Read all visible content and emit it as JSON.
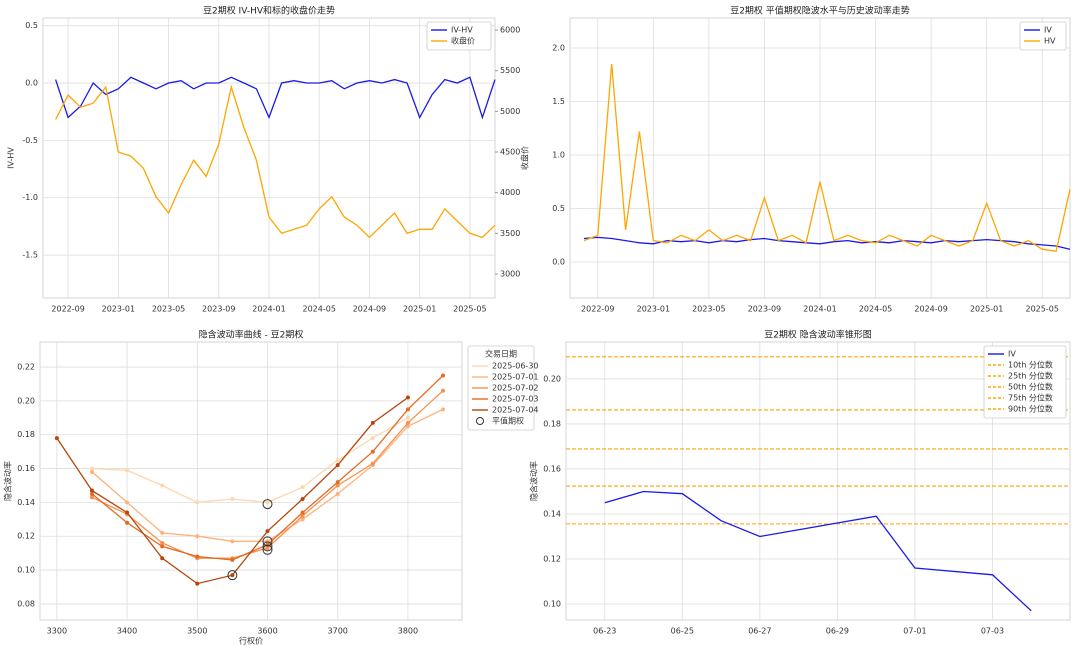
{
  "chart_data": [
    {
      "type": "line",
      "title": "豆2期权 IV-HV和标的收盘价走势",
      "ylabel": "IV-HV",
      "y2label": "收盘价",
      "ycolor": "#1f77b4",
      "y2color": "#e00000",
      "grid": true,
      "legend": "upper right",
      "x": [
        "2022-08",
        "2022-09",
        "2022-10",
        "2022-11",
        "2022-12",
        "2023-01",
        "2023-02",
        "2023-03",
        "2023-04",
        "2023-05",
        "2023-06",
        "2023-07",
        "2023-08",
        "2023-09",
        "2023-10",
        "2023-11",
        "2023-12",
        "2024-01",
        "2024-02",
        "2024-03",
        "2024-04",
        "2024-05",
        "2024-06",
        "2024-07",
        "2024-08",
        "2024-09",
        "2024-10",
        "2024-11",
        "2024-12",
        "2025-01",
        "2025-02",
        "2025-03",
        "2025-04",
        "2025-05",
        "2025-06",
        "2025-07"
      ],
      "xlim": [
        "2022-07",
        "2025-07"
      ],
      "xticks": [
        "2022-09",
        "2023-01",
        "2023-05",
        "2023-09",
        "2024-01",
        "2024-05",
        "2024-09",
        "2025-01",
        "2025-05"
      ],
      "ylim": [
        -1.874,
        0.567
      ],
      "yticks": [
        {
          "value": -1.5,
          "label": "-1.5"
        },
        {
          "value": -1,
          "label": "-1.0"
        },
        {
          "value": -0.5,
          "label": "-0.5"
        },
        {
          "value": 0,
          "label": "0.0"
        },
        0.5
      ],
      "y2lim": [
        2705,
        6148
      ],
      "y2ticks": [
        3000,
        3500,
        4000,
        4500,
        5000,
        5500,
        6000
      ],
      "series": [
        {
          "name": "IV-HV",
          "color": "#1a1ae6",
          "values": [
            0.03,
            -0.3,
            -0.2,
            0,
            -0.1,
            -0.05,
            0.05,
            0,
            -0.05,
            0,
            0.02,
            -0.05,
            0,
            0,
            0.05,
            0,
            -0.05,
            -0.3,
            0,
            0.02,
            0,
            0,
            0.02,
            -0.05,
            0,
            0.02,
            0,
            0.03,
            0,
            -0.3,
            -0.1,
            0.03,
            0,
            0.05,
            -0.3,
            0.03
          ]
        },
        {
          "name": "收盘价",
          "color": "#ffa500",
          "axis": "y2",
          "values": [
            4900,
            5200,
            5050,
            5100,
            5300,
            4500,
            4450,
            4300,
            3950,
            3750,
            4100,
            4400,
            4200,
            4600,
            5300,
            4800,
            4400,
            3700,
            3500,
            3550,
            3600,
            3800,
            3950,
            3700,
            3600,
            3450,
            3600,
            3750,
            3500,
            3550,
            3550,
            3800,
            3650,
            3500,
            3450,
            3600
          ]
        }
      ]
    },
    {
      "type": "line",
      "title": "豆2期权 平值期权隐波水平与历史波动率走势",
      "grid": true,
      "legend": "upper right",
      "x": [
        "2022-08",
        "2022-09",
        "2022-10",
        "2022-11",
        "2022-12",
        "2023-01",
        "2023-02",
        "2023-03",
        "2023-04",
        "2023-05",
        "2023-06",
        "2023-07",
        "2023-08",
        "2023-09",
        "2023-10",
        "2023-11",
        "2023-12",
        "2024-01",
        "2024-02",
        "2024-03",
        "2024-04",
        "2024-05",
        "2024-06",
        "2024-07",
        "2024-08",
        "2024-09",
        "2024-10",
        "2024-11",
        "2024-12",
        "2025-01",
        "2025-02",
        "2025-03",
        "2025-04",
        "2025-05",
        "2025-06",
        "2025-07"
      ],
      "xlim": [
        "2022-07",
        "2025-07"
      ],
      "xticks": [
        "2022-09",
        "2023-01",
        "2023-05",
        "2023-09",
        "2024-01",
        "2024-05",
        "2024-09",
        "2025-01",
        "2025-05"
      ],
      "ylim": [
        -0.336,
        2.28
      ],
      "yticks": [
        {
          "value": 0,
          "label": "0.0"
        },
        0.5,
        {
          "value": 1,
          "label": "1.0"
        },
        1.5,
        {
          "value": 2,
          "label": "2.0"
        }
      ],
      "series": [
        {
          "name": "IV",
          "color": "#1a1ae6",
          "values": [
            0.22,
            0.23,
            0.22,
            0.2,
            0.18,
            0.17,
            0.2,
            0.19,
            0.2,
            0.18,
            0.2,
            0.19,
            0.21,
            0.22,
            0.2,
            0.19,
            0.18,
            0.17,
            0.19,
            0.2,
            0.18,
            0.19,
            0.18,
            0.2,
            0.19,
            0.18,
            0.2,
            0.19,
            0.2,
            0.21,
            0.2,
            0.19,
            0.17,
            0.16,
            0.15,
            0.12
          ]
        },
        {
          "name": "HV",
          "color": "#ffa500",
          "values": [
            0.2,
            0.25,
            1.85,
            0.3,
            1.22,
            0.2,
            0.18,
            0.25,
            0.2,
            0.3,
            0.2,
            0.25,
            0.2,
            0.6,
            0.2,
            0.25,
            0.18,
            0.75,
            0.2,
            0.25,
            0.2,
            0.18,
            0.25,
            0.2,
            0.15,
            0.25,
            0.2,
            0.15,
            0.2,
            0.55,
            0.2,
            0.15,
            0.2,
            0.12,
            0.1,
            0.68
          ]
        }
      ]
    },
    {
      "type": "line",
      "title": "隐含波动率曲线 - 豆2期权",
      "xlabel": "行权价",
      "ylabel": "隐含波动率",
      "grid": true,
      "markers": true,
      "legend": "outside right",
      "legend_title": "交易日期",
      "x": [
        3300,
        3350,
        3400,
        3450,
        3500,
        3550,
        3600,
        3650,
        3700,
        3750,
        3800,
        3850
      ],
      "xlim": [
        3276,
        3877
      ],
      "xticks": [
        3300,
        3400,
        3500,
        3600,
        3700,
        3800
      ],
      "ylim": [
        0.0705,
        0.2348
      ],
      "yticks": [
        0.08,
        {
          "value": 0.1,
          "label": "0.10"
        },
        0.12,
        0.14,
        0.16,
        0.18,
        {
          "value": 0.2,
          "label": "0.20"
        },
        0.22
      ],
      "series": [
        {
          "name": "2025-06-30",
          "color": "#fdd7b0",
          "values": [
            null,
            0.16,
            0.159,
            0.15,
            0.14,
            0.142,
            0.14,
            0.149,
            0.165,
            0.178,
            0.19,
            null
          ]
        },
        {
          "name": "2025-07-01",
          "color": "#fdb27a",
          "values": [
            null,
            0.158,
            0.14,
            0.122,
            0.12,
            0.117,
            0.117,
            0.13,
            0.145,
            0.162,
            0.185,
            0.195
          ]
        },
        {
          "name": "2025-07-02",
          "color": "#f7904e",
          "values": [
            null,
            0.143,
            0.133,
            0.116,
            0.107,
            0.107,
            0.113,
            0.132,
            0.15,
            0.163,
            0.187,
            0.206
          ]
        },
        {
          "name": "2025-07-03",
          "color": "#e56a22",
          "values": [
            null,
            0.145,
            0.128,
            0.114,
            0.108,
            0.106,
            0.115,
            0.134,
            0.152,
            0.17,
            0.195,
            0.215
          ]
        },
        {
          "name": "2025-07-04",
          "color": "#b5470c",
          "values": [
            0.178,
            0.147,
            0.134,
            0.107,
            0.092,
            0.097,
            0.123,
            0.142,
            0.162,
            0.187,
            0.202,
            null
          ]
        }
      ],
      "scatter": {
        "name": "平值期权",
        "color": "#333333",
        "x": [
          3550,
          3600,
          3600,
          3600,
          3600
        ],
        "values": [
          0.097,
          0.139,
          0.117,
          0.114,
          0.112
        ]
      }
    },
    {
      "type": "line",
      "title": "豆2期权 隐含波动率锥形图",
      "ylabel": "隐含波动率",
      "grid": true,
      "legend": "upper right",
      "x": [
        "06-23",
        "06-24",
        "06-25",
        "06-26",
        "06-27",
        "06-30",
        "07-01",
        "07-03",
        "07-04"
      ],
      "xlim": [
        "06-22",
        "07-05"
      ],
      "xticks": [
        "06-23",
        "06-25",
        "06-27",
        "06-29",
        "07-01",
        "07-03"
      ],
      "ylim": [
        0.0929,
        0.2164
      ],
      "yticks": [
        {
          "value": 0.1,
          "label": "0.10"
        },
        0.12,
        0.14,
        0.16,
        0.18,
        {
          "value": 0.2,
          "label": "0.20"
        }
      ],
      "series": [
        {
          "name": "IV",
          "color": "#1a1ae6",
          "values": [
            0.145,
            0.15,
            0.149,
            0.137,
            0.13,
            0.139,
            0.116,
            0.113,
            0.097
          ]
        }
      ],
      "hlines": [
        {
          "name": "10th 分位数",
          "color": "#ffa500",
          "value": 0.1356
        },
        {
          "name": "25th 分位数",
          "color": "#ffa500",
          "value": 0.1524
        },
        {
          "name": "50th 分位数",
          "color": "#ffa500",
          "value": 0.1689
        },
        {
          "name": "75th 分位数",
          "color": "#ffa500",
          "value": 0.1862
        },
        {
          "name": "90th 分位数",
          "color": "#ffa500",
          "value": 0.2098
        }
      ]
    }
  ]
}
